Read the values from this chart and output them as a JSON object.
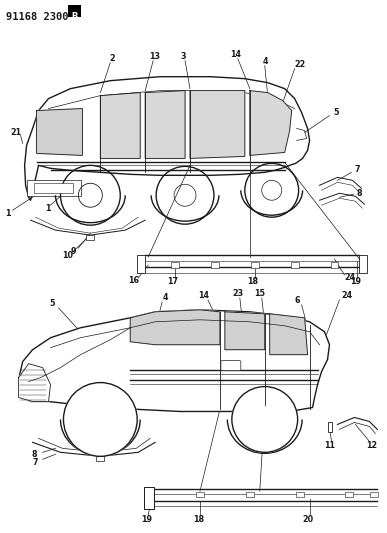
{
  "background_color": "#ffffff",
  "line_color": "#1a1a1a",
  "header": "91168 2300",
  "header_b": "B",
  "figsize": [
    3.87,
    5.33
  ],
  "dpi": 100,
  "label_fontsize": 5.8,
  "header_fontsize": 7.5
}
